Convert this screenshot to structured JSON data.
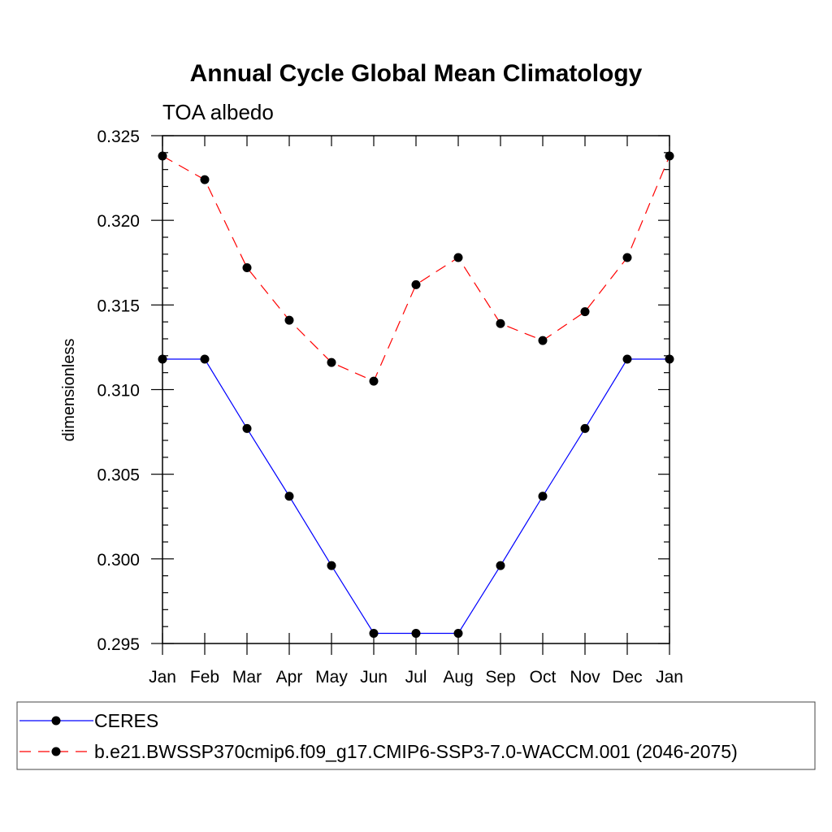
{
  "chart_data": {
    "type": "line",
    "title": "Annual Cycle Global Mean Climatology",
    "subtitle": "TOA albedo",
    "xlabel": "",
    "ylabel": "dimensionless",
    "categories": [
      "Jan",
      "Feb",
      "Mar",
      "Apr",
      "May",
      "Jun",
      "Jul",
      "Aug",
      "Sep",
      "Oct",
      "Nov",
      "Dec",
      "Jan"
    ],
    "ylim": [
      0.295,
      0.325
    ],
    "yticks": [
      "0.295",
      "0.300",
      "0.305",
      "0.310",
      "0.315",
      "0.320",
      "0.325"
    ],
    "yminor_step": 0.001,
    "grid": false,
    "legend_position": "bottom",
    "series": [
      {
        "name": "CERES",
        "color": "#0000ff",
        "dash": "solid",
        "marker": "circle",
        "values": [
          0.3118,
          0.3118,
          0.3077,
          0.3037,
          0.2996,
          0.2956,
          0.2956,
          0.2956,
          0.2996,
          0.3037,
          0.3077,
          0.3118,
          0.3118
        ]
      },
      {
        "name": "b.e21.BWSSP370cmip6.f09_g17.CMIP6-SSP3-7.0-WACCM.001 (2046-2075)",
        "color": "#ff0000",
        "dash": "dashed",
        "marker": "circle",
        "values": [
          0.3238,
          0.3224,
          0.3172,
          0.3141,
          0.3116,
          0.3105,
          0.3162,
          0.3178,
          0.3139,
          0.3129,
          0.3146,
          0.3178,
          0.3238
        ]
      }
    ]
  }
}
